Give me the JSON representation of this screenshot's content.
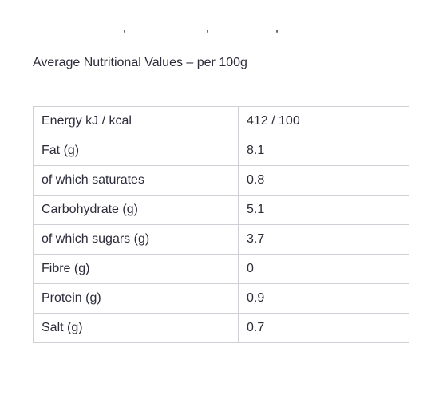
{
  "heading": "Average Nutritional Values – per 100g",
  "table": {
    "rows": [
      {
        "name": "Energy kJ / kcal",
        "value": "412 / 100"
      },
      {
        "name": "Fat (g)",
        "value": "8.1"
      },
      {
        "name": "of which saturates",
        "value": "0.8"
      },
      {
        "name": "Carbohydrate (g)",
        "value": "5.1"
      },
      {
        "name": "of which sugars (g)",
        "value": "3.7"
      },
      {
        "name": "Fibre (g)",
        "value": "0"
      },
      {
        "name": "Protein (g)",
        "value": "0.9"
      },
      {
        "name": "Salt (g)",
        "value": "0.7"
      }
    ]
  },
  "colors": {
    "text": "#2b2b3a",
    "border": "#cfcfd6",
    "background": "#ffffff"
  }
}
